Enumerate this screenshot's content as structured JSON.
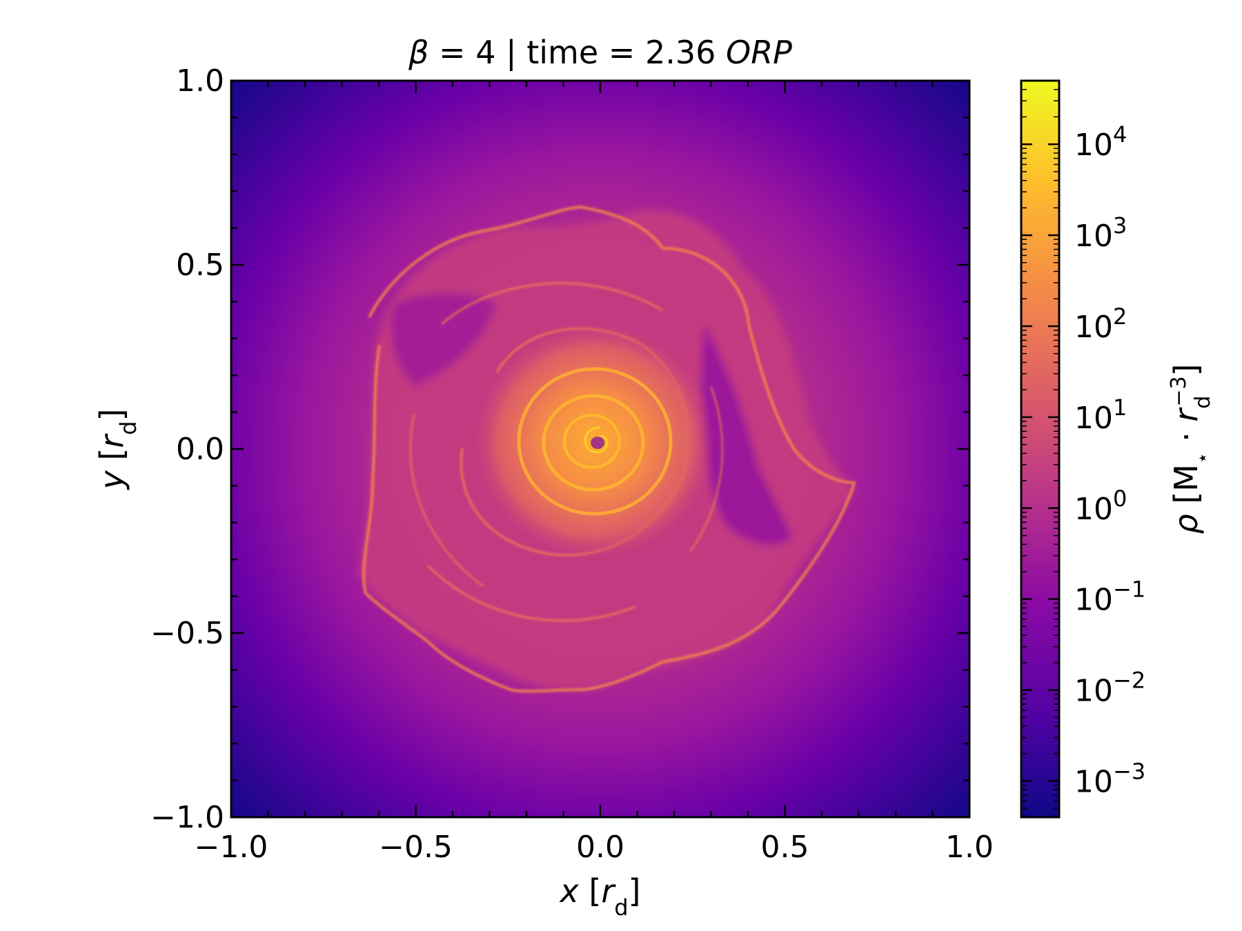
{
  "chart_data": {
    "type": "heatmap",
    "title_parts": {
      "beta_symbol": "β",
      "beta_text": " = 4 | time = 2.36 ",
      "unit_italic": "ORP"
    },
    "x_axis": {
      "symbol": "x",
      "unit_prefix": " [",
      "unit_symbol": "r",
      "unit_subscript": "d",
      "unit_suffix": "]",
      "range": [
        -1.0,
        1.0
      ],
      "ticks": [
        -1.0,
        -0.5,
        0.0,
        0.5,
        1.0
      ],
      "tick_labels": [
        "−1.0",
        "−0.5",
        "0.0",
        "0.5",
        "1.0"
      ]
    },
    "y_axis": {
      "symbol": "y",
      "unit_prefix": " [",
      "unit_symbol": "r",
      "unit_subscript": "d",
      "unit_suffix": "]",
      "range": [
        -1.0,
        1.0
      ],
      "ticks": [
        -1.0,
        -0.5,
        0.0,
        0.5,
        1.0
      ],
      "tick_labels": [
        "−1.0",
        "−0.5",
        "0.0",
        "0.5",
        "1.0"
      ]
    },
    "colorbar": {
      "scale": "log",
      "range": [
        0.0004,
        50000
      ],
      "colormap": "plasma",
      "label_parts": {
        "rho": "ρ",
        "open": " [M",
        "star": "⋆",
        "dot": " · ",
        "r": "r",
        "r_sub": "d",
        "r_sup": "−3",
        "close": "]"
      },
      "ticks": [
        {
          "exp": -3,
          "base": "10",
          "sup": "−3"
        },
        {
          "exp": -2,
          "base": "10",
          "sup": "−2"
        },
        {
          "exp": -1,
          "base": "10",
          "sup": "−1"
        },
        {
          "exp": 0,
          "base": "10",
          "sup": "0"
        },
        {
          "exp": 1,
          "base": "10",
          "sup": "1"
        },
        {
          "exp": 2,
          "base": "10",
          "sup": "2"
        },
        {
          "exp": 3,
          "base": "10",
          "sup": "3"
        },
        {
          "exp": 4,
          "base": "10",
          "sup": "4"
        }
      ]
    },
    "density_structure": {
      "background_log_rho": -3.0,
      "disk_halo_log_rho": -0.8,
      "shocked_ring_log_rho": 2.0,
      "spiral_core_log_rho": 3.3,
      "spiral_arm_log_rho": 2.6
    },
    "colors": {
      "c0": "#0d0887",
      "c1": "#5302a3",
      "c2": "#8b0aa5",
      "c3": "#b83289",
      "c4": "#db5c68",
      "c5": "#f48849",
      "c6": "#febc2a",
      "c7": "#f0f921"
    }
  }
}
